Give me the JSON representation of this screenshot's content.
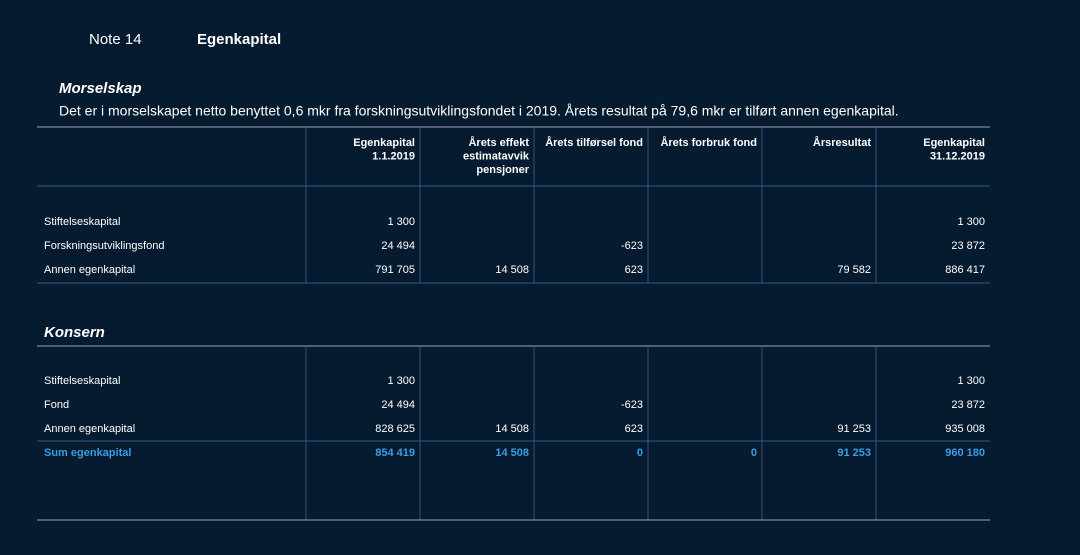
{
  "header": {
    "note": "Note 14",
    "title": "Egenkapital"
  },
  "morselskap": {
    "title": "Morselskap",
    "description": "Det er i morselskapet netto benyttet 0,6 mkr fra forskningsutviklingsfondet i 2019. Årets resultat på 79,6 mkr er tilført annen egenkapital.",
    "columns": [
      [
        "Egenkapital",
        "1.1.2019"
      ],
      [
        "Årets effekt",
        "estimatavvik",
        "pensjoner"
      ],
      [
        "Årets tilførsel fond"
      ],
      [
        "Årets forbruk fond"
      ],
      [
        "Årsresultat"
      ],
      [
        "Egenkapital",
        "31.12.2019"
      ]
    ],
    "rows": [
      {
        "label": "Stiftelseskapital",
        "cells": [
          "1 300",
          null,
          null,
          null,
          null,
          "1 300"
        ]
      },
      {
        "label": "Forskningsutviklingsfond",
        "cells": [
          "24 494",
          null,
          "-623",
          null,
          null,
          "23 872"
        ]
      },
      {
        "label": "Annen egenkapital",
        "cells": [
          "791 705",
          "14 508",
          "623",
          null,
          "79 582",
          "886 417"
        ]
      }
    ]
  },
  "konsern": {
    "title": "Konsern",
    "rows": [
      {
        "label": "Stiftelseskapital",
        "cells": [
          "1 300",
          null,
          null,
          null,
          null,
          "1 300"
        ]
      },
      {
        "label": "Fond",
        "cells": [
          "24 494",
          null,
          "-623",
          null,
          null,
          "23 872"
        ]
      },
      {
        "label": "Annen egenkapital",
        "cells": [
          "828 625",
          "14 508",
          "623",
          null,
          "91 253",
          "935 008"
        ]
      }
    ],
    "total": {
      "label": "Sum egenkapital",
      "cells": [
        "854 419",
        "14 508",
        "0",
        "0",
        "91 253",
        "960 180"
      ]
    }
  }
}
